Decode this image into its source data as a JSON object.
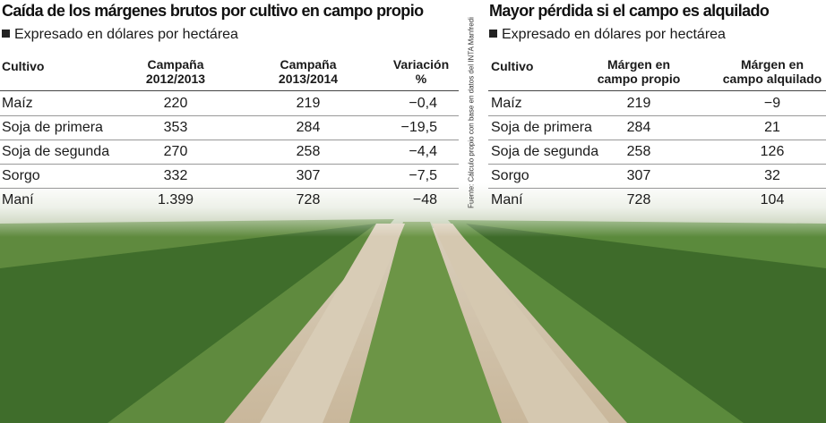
{
  "left": {
    "title": "Caída de los márgenes brutos por cultivo en campo propio",
    "subtitle": "Expresado en dólares por hectárea",
    "table": {
      "header": [
        "Cultivo",
        "Campaña\n2012/2013",
        "Campaña\n2013/2014",
        "Variación\n%"
      ],
      "rows": [
        [
          "Maíz",
          "220",
          "219",
          "−0,4"
        ],
        [
          "Soja de primera",
          "353",
          "284",
          "−19,5"
        ],
        [
          "Soja de segunda",
          "270",
          "258",
          "−4,4"
        ],
        [
          "Sorgo",
          "332",
          "307",
          "−7,5"
        ],
        [
          "Maní",
          "1.399",
          "728",
          "−48"
        ]
      ]
    }
  },
  "right": {
    "title": "Mayor pérdida si el campo es alquilado",
    "subtitle": "Expresado en dólares por hectárea",
    "table": {
      "header": [
        "Cultivo",
        "Márgen en\ncampo propio",
        "Márgen en\ncampo alquilado"
      ],
      "rows": [
        [
          "Maíz",
          "219",
          "−9"
        ],
        [
          "Soja de primera",
          "284",
          "21"
        ],
        [
          "Soja de segunda",
          "258",
          "126"
        ],
        [
          "Sorgo",
          "307",
          "32"
        ],
        [
          "Maní",
          "728",
          "104"
        ]
      ]
    }
  },
  "source": "Fuente: Cálculo propio con base en datos del INTA Manfredi"
}
